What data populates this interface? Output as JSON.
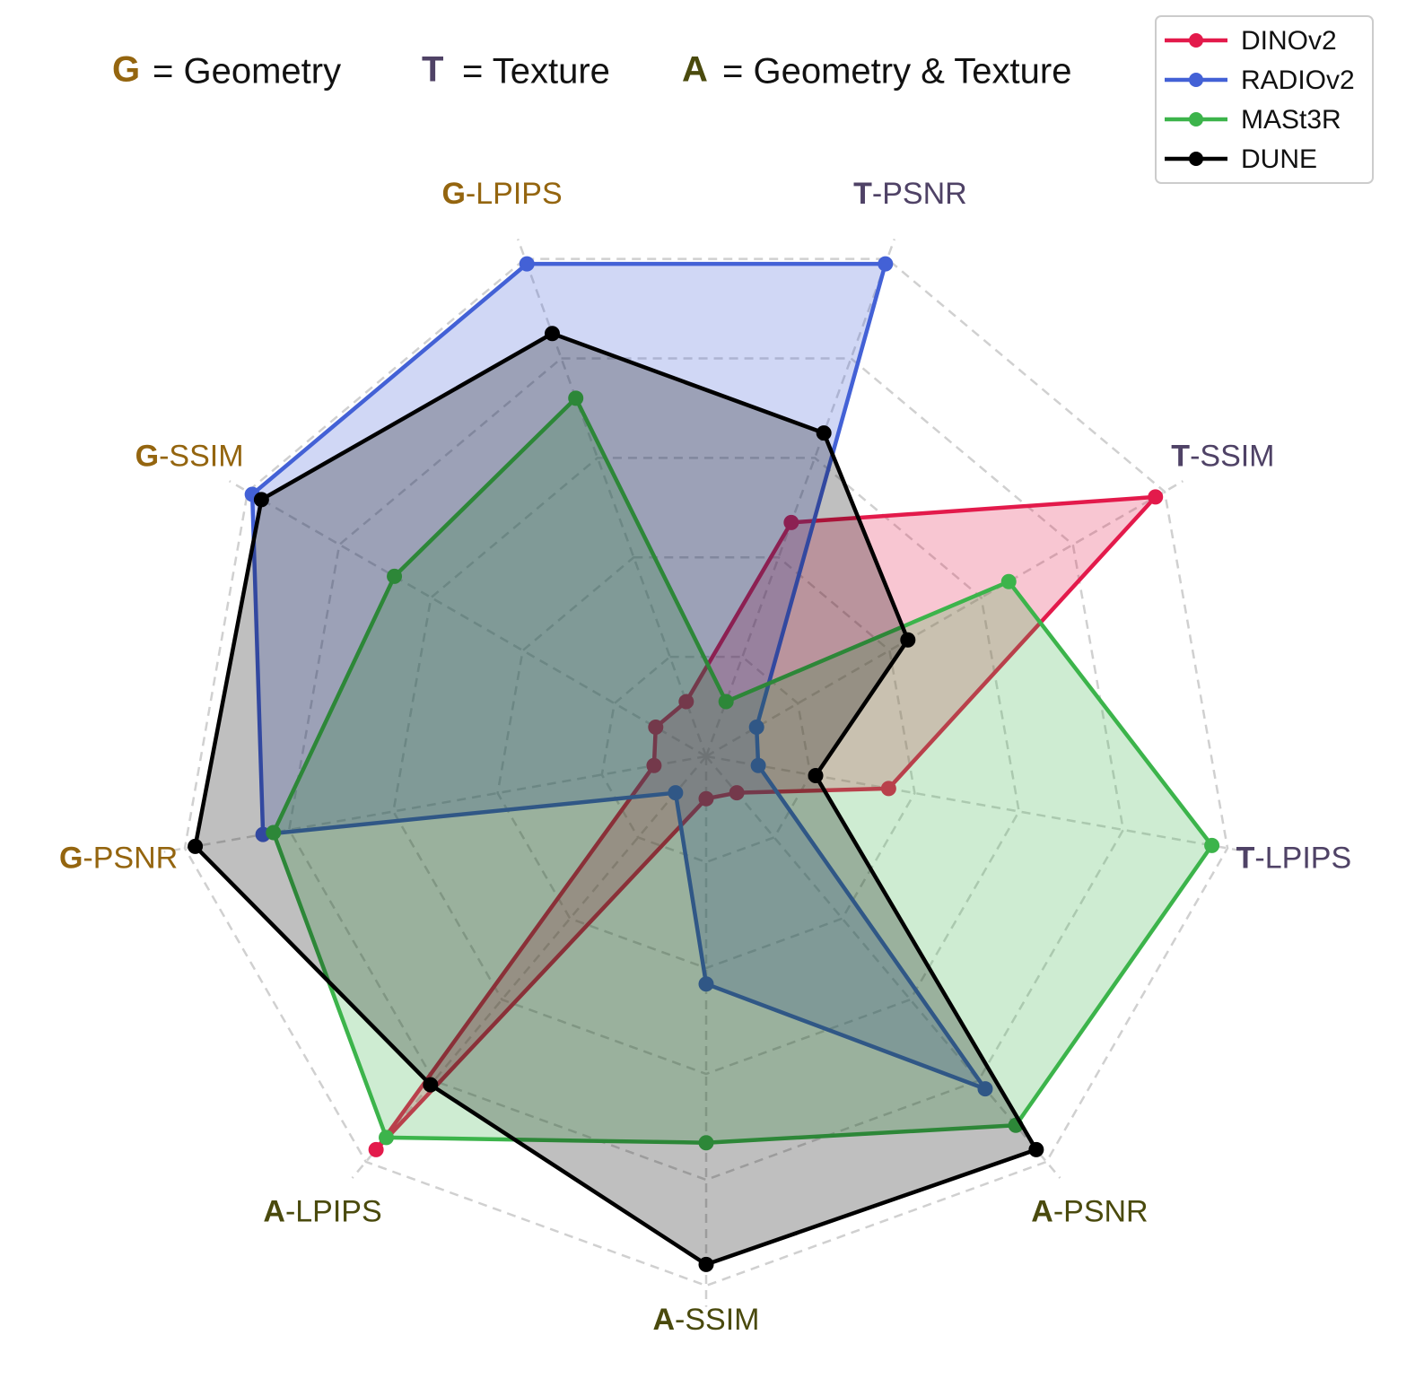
{
  "chart_data": {
    "type": "radar",
    "categories": [
      "G-LPIPS",
      "T-PSNR",
      "T-SSIM",
      "T-LPIPS",
      "A-PSNR",
      "A-SSIM",
      "A-LPIPS",
      "G-PSNR",
      "G-SSIM"
    ],
    "category_groups": [
      {
        "letter": "G",
        "label": "= Geometry",
        "color": "#94650f"
      },
      {
        "letter": "T",
        "label": "= Texture",
        "color": "#4f4266"
      },
      {
        "letter": "A",
        "label": "= Geometry & Texture",
        "color": "#4a4a0d"
      }
    ],
    "series": [
      {
        "name": "DINOv2",
        "color": "#e31a4b",
        "values": [
          0.11,
          0.47,
          0.98,
          0.35,
          0.09,
          0.08,
          0.97,
          0.1,
          0.11
        ]
      },
      {
        "name": "RADIOv2",
        "color": "#4361d6",
        "values": [
          0.99,
          0.99,
          0.11,
          0.1,
          0.82,
          0.43,
          0.09,
          0.85,
          0.99
        ]
      },
      {
        "name": "MASt3R",
        "color": "#3cb44b",
        "values": [
          0.72,
          0.11,
          0.66,
          0.97,
          0.91,
          0.73,
          0.94,
          0.83,
          0.68
        ]
      },
      {
        "name": "DUNE",
        "color": "#000000",
        "values": [
          0.85,
          0.65,
          0.44,
          0.21,
          0.97,
          0.96,
          0.81,
          0.98,
          0.97
        ]
      }
    ],
    "ylim": [
      0,
      1
    ],
    "yticks": [
      0.2,
      0.4,
      0.6,
      0.8,
      1.0
    ],
    "grid": true,
    "legend": "upper right"
  }
}
